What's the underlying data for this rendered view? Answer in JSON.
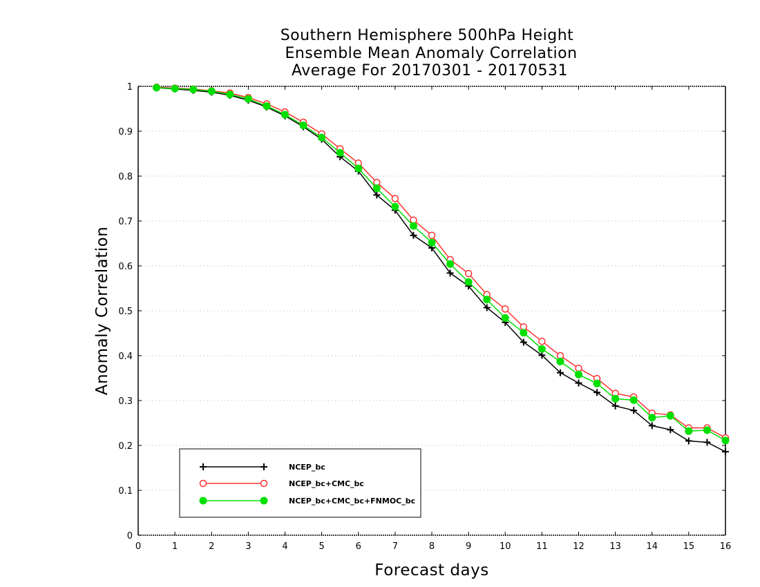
{
  "chart_data": {
    "type": "line",
    "title": [
      "Southern Hemisphere 500hPa Height",
      "Ensemble Mean Anomaly Correlation",
      "Average For 20170301 - 20170531"
    ],
    "xlabel": "Forecast days",
    "ylabel": "Anomaly Correlation",
    "xlim": [
      0,
      16
    ],
    "ylim": [
      0,
      1
    ],
    "x_ticks": [
      "0",
      "1",
      "2",
      "3",
      "4",
      "5",
      "6",
      "7",
      "8",
      "9",
      "10",
      "11",
      "12",
      "13",
      "14",
      "15",
      "16"
    ],
    "y_ticks": [
      "0",
      "0.1",
      "0.2",
      "0.3",
      "0.4",
      "0.5",
      "0.6",
      "0.7",
      "0.8",
      "0.9",
      "1"
    ],
    "grid": true,
    "legend_position": "bottom-left",
    "x": [
      0.5,
      1,
      1.5,
      2,
      2.5,
      3,
      3.5,
      4,
      4.5,
      5,
      5.5,
      6,
      6.5,
      7,
      7.5,
      8,
      8.5,
      9,
      9.5,
      10,
      10.5,
      11,
      11.5,
      12,
      12.5,
      13,
      13.5,
      14,
      14.5,
      15,
      15.5,
      16
    ],
    "series": [
      {
        "name": "NCEP_bc",
        "color": "#000000",
        "marker": "plus",
        "values": [
          0.997,
          0.994,
          0.991,
          0.987,
          0.98,
          0.969,
          0.954,
          0.934,
          0.91,
          0.882,
          0.843,
          0.811,
          0.758,
          0.724,
          0.668,
          0.64,
          0.584,
          0.555,
          0.507,
          0.474,
          0.43,
          0.401,
          0.362,
          0.339,
          0.318,
          0.288,
          0.278,
          0.244,
          0.235,
          0.21,
          0.207,
          0.186
        ]
      },
      {
        "name": "NCEP_bc+CMC_bc",
        "color": "#ff3030",
        "marker": "open-circle",
        "values": [
          0.998,
          0.996,
          0.994,
          0.99,
          0.985,
          0.975,
          0.961,
          0.943,
          0.92,
          0.894,
          0.861,
          0.829,
          0.786,
          0.75,
          0.702,
          0.668,
          0.614,
          0.583,
          0.536,
          0.504,
          0.464,
          0.432,
          0.4,
          0.372,
          0.349,
          0.316,
          0.308,
          0.272,
          0.268,
          0.239,
          0.239,
          0.217
        ]
      },
      {
        "name": "NCEP_bc+CMC_bc+FNMOC_bc",
        "color": "#00e000",
        "marker": "filled-circle",
        "values": [
          0.997,
          0.995,
          0.993,
          0.989,
          0.982,
          0.972,
          0.956,
          0.937,
          0.913,
          0.886,
          0.852,
          0.817,
          0.773,
          0.732,
          0.689,
          0.652,
          0.604,
          0.564,
          0.525,
          0.484,
          0.451,
          0.415,
          0.387,
          0.358,
          0.338,
          0.304,
          0.301,
          0.262,
          0.266,
          0.232,
          0.234,
          0.211
        ]
      }
    ]
  }
}
